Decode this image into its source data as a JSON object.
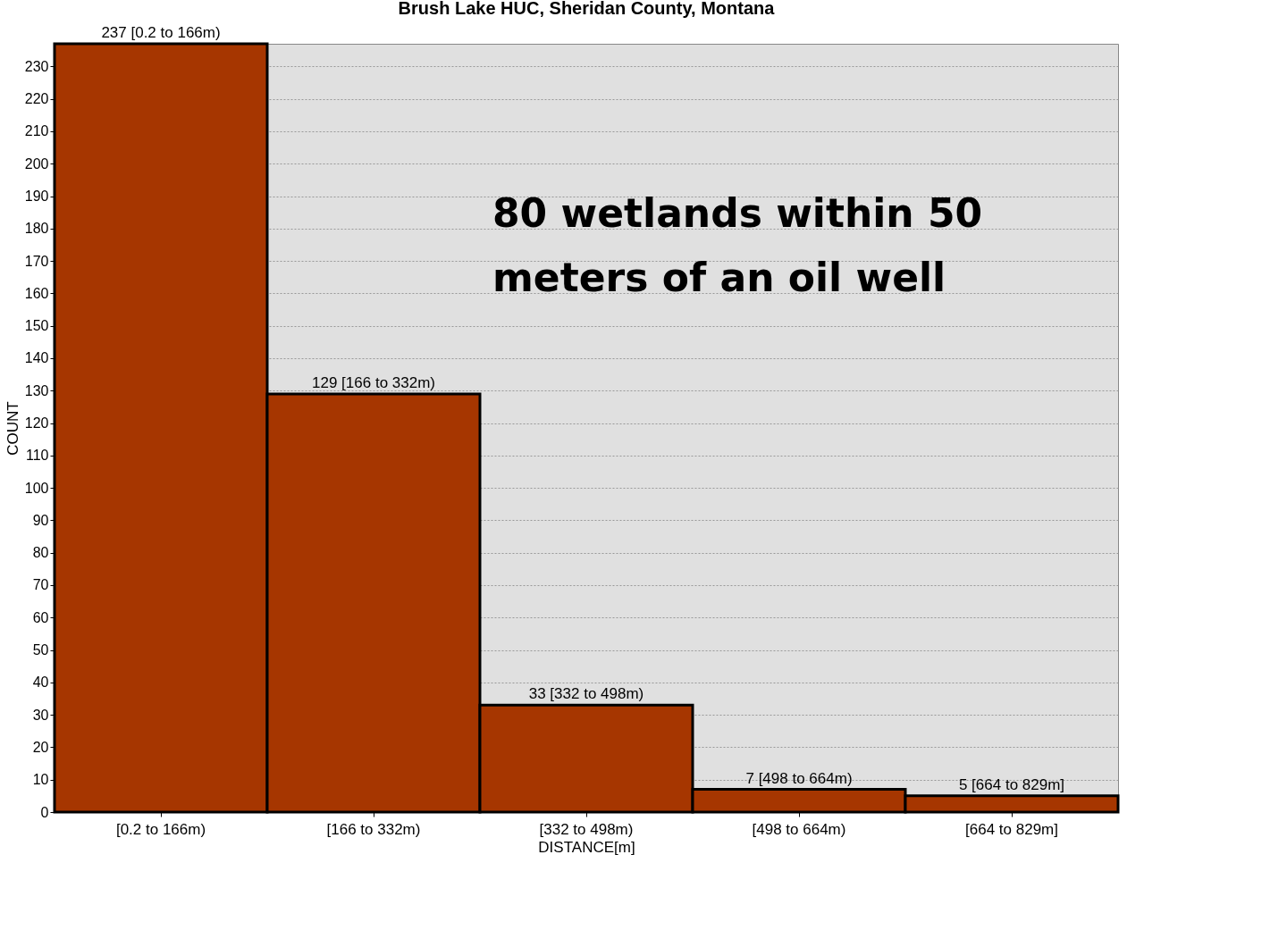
{
  "chart_data": {
    "type": "bar",
    "title": "Brush Lake HUC, Sheridan County, Montana",
    "xlabel": "DISTANCE[m]",
    "ylabel": "COUNT",
    "categories": [
      "[0.2 to 166m)",
      "[166 to 332m)",
      "[332 to 498m)",
      "[498 to 664m)",
      "[664 to 829m]"
    ],
    "values": [
      237,
      129,
      33,
      7,
      5
    ],
    "color": "#a63600",
    "value_labels": [
      "237 [0.2 to 166m)",
      "129 [166 to 332m)",
      "33 [332 to 498m)",
      "7 [498 to 664m)",
      "5 [664 to 829m]"
    ],
    "ylim": [
      0,
      237
    ],
    "yticks": [
      0,
      10,
      20,
      30,
      40,
      50,
      60,
      70,
      80,
      90,
      100,
      110,
      120,
      130,
      140,
      150,
      160,
      170,
      180,
      190,
      200,
      210,
      220,
      230
    ],
    "grid": "y",
    "annotations": [
      "80 wetlands within 50 meters of an oil well"
    ]
  }
}
